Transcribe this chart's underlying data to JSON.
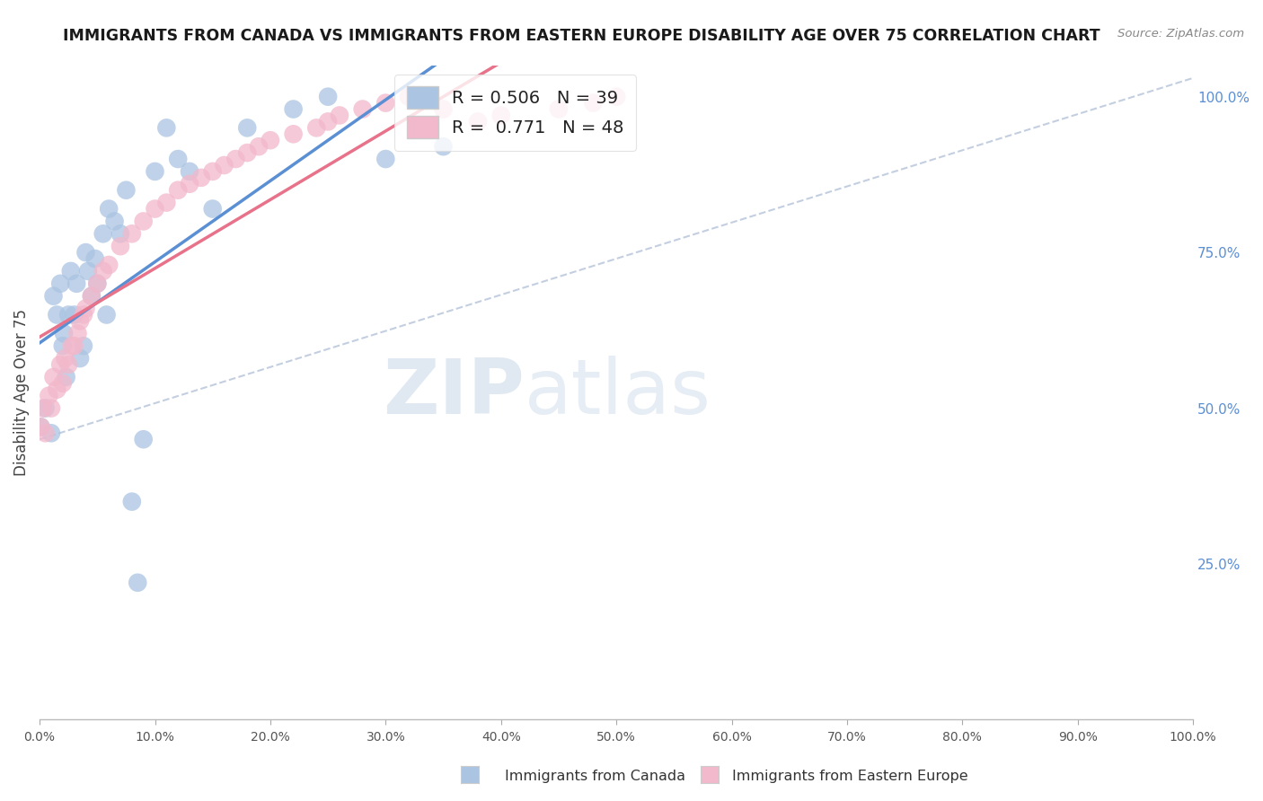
{
  "title": "IMMIGRANTS FROM CANADA VS IMMIGRANTS FROM EASTERN EUROPE DISABILITY AGE OVER 75 CORRELATION CHART",
  "source": "Source: ZipAtlas.com",
  "ylabel": "Disability Age Over 75",
  "x_label_bottom_legend": "Immigrants from Canada",
  "x_label_bottom_legend2": "Immigrants from Eastern Europe",
  "watermark_zip": "ZIP",
  "watermark_atlas": "atlas",
  "R_canada": 0.506,
  "N_canada": 39,
  "R_eastern": 0.771,
  "N_eastern": 48,
  "canada_color": "#aac4e2",
  "eastern_color": "#f2b8cb",
  "canada_line_color": "#5b8fd4",
  "eastern_line_color": "#e8728a",
  "right_tick_color": "#5b8fd4",
  "canada_x": [
    0.1,
    0.5,
    1.0,
    1.2,
    1.5,
    1.8,
    2.0,
    2.1,
    2.3,
    2.5,
    2.7,
    3.0,
    3.2,
    3.5,
    3.8,
    4.0,
    4.2,
    4.5,
    4.8,
    5.0,
    5.5,
    5.8,
    6.0,
    6.5,
    7.0,
    7.5,
    8.0,
    8.5,
    9.0,
    10.0,
    11.0,
    12.0,
    13.0,
    15.0,
    18.0,
    22.0,
    25.0,
    30.0,
    35.0
  ],
  "canada_y": [
    47.0,
    50.0,
    46.0,
    68.0,
    65.0,
    70.0,
    60.0,
    62.0,
    55.0,
    65.0,
    72.0,
    65.0,
    70.0,
    58.0,
    60.0,
    75.0,
    72.0,
    68.0,
    74.0,
    70.0,
    78.0,
    65.0,
    82.0,
    80.0,
    78.0,
    85.0,
    35.0,
    22.0,
    45.0,
    88.0,
    95.0,
    90.0,
    88.0,
    82.0,
    95.0,
    98.0,
    100.0,
    90.0,
    92.0
  ],
  "eastern_x": [
    0.1,
    0.3,
    0.5,
    0.8,
    1.0,
    1.2,
    1.5,
    1.8,
    2.0,
    2.2,
    2.5,
    2.8,
    3.0,
    3.3,
    3.5,
    3.8,
    4.0,
    4.5,
    5.0,
    5.5,
    6.0,
    7.0,
    8.0,
    9.0,
    10.0,
    11.0,
    12.0,
    13.0,
    14.0,
    15.0,
    16.0,
    17.0,
    18.0,
    19.0,
    20.0,
    22.0,
    24.0,
    25.0,
    26.0,
    28.0,
    30.0,
    32.0,
    35.0,
    38.0,
    40.0,
    45.0,
    48.0,
    50.0
  ],
  "eastern_y": [
    47.0,
    50.0,
    46.0,
    52.0,
    50.0,
    55.0,
    53.0,
    57.0,
    54.0,
    58.0,
    57.0,
    60.0,
    60.0,
    62.0,
    64.0,
    65.0,
    66.0,
    68.0,
    70.0,
    72.0,
    73.0,
    76.0,
    78.0,
    80.0,
    82.0,
    83.0,
    85.0,
    86.0,
    87.0,
    88.0,
    89.0,
    90.0,
    91.0,
    92.0,
    93.0,
    94.0,
    95.0,
    96.0,
    97.0,
    98.0,
    99.0,
    100.0,
    98.0,
    96.0,
    97.0,
    98.0,
    99.0,
    100.0
  ]
}
